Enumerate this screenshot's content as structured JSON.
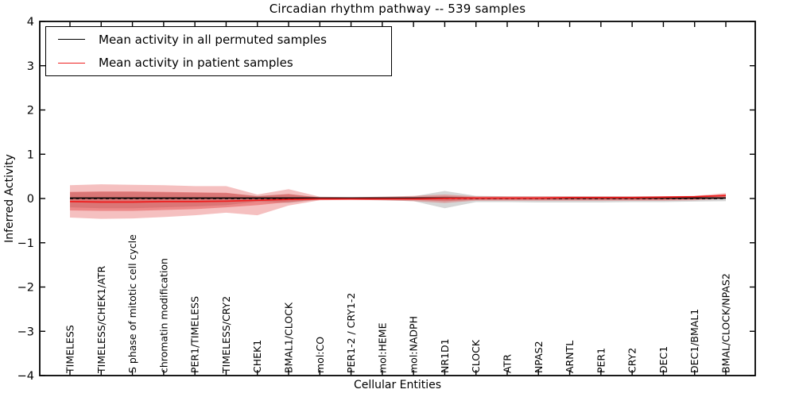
{
  "chart_data": {
    "type": "area",
    "title": "Circadian rhythm pathway -- 539 samples",
    "xlabel": "Cellular Entities",
    "ylabel": "Inferred Activity",
    "ylim": [
      -4,
      4
    ],
    "grid": false,
    "legend_position": "upper left",
    "yticks": [
      {
        "label": "4",
        "value": 4
      },
      {
        "label": "3",
        "value": 3
      },
      {
        "label": "2",
        "value": 2
      },
      {
        "label": "1",
        "value": 1
      },
      {
        "label": "0",
        "value": 0
      },
      {
        "label": "−1",
        "value": -1
      },
      {
        "label": "−2",
        "value": -2
      },
      {
        "label": "−3",
        "value": -3
      },
      {
        "label": "−4",
        "value": -4
      }
    ],
    "categories": [
      "TIMELESS",
      "TIMELESS/CHEK1/ATR",
      "S phase of mitotic cell cycle",
      "chromatin modification",
      "PER1/TIMELESS",
      "TIMELESS/CRY2",
      "CHEK1",
      "BMAL1/CLOCK",
      "mol:CO",
      "PER1-2 / CRY1-2",
      "mol:HEME",
      "mol:NADPH",
      "NR1D1",
      "CLOCK",
      "ATR",
      "NPAS2",
      "ARNTL",
      "PER1",
      "CRY2",
      "DEC1",
      "DEC1/BMAL1",
      "BMAL/CLOCK/NPAS2"
    ],
    "legend": [
      {
        "label": "Mean activity in all permuted samples",
        "color": "#000000"
      },
      {
        "label": "Mean activity in patient samples",
        "color": "#ee2020"
      }
    ],
    "bands": [
      {
        "name": "permuted-std-band",
        "color": "#808080",
        "alpha": 0.32,
        "upper": [
          0.14,
          0.15,
          0.15,
          0.14,
          0.13,
          0.12,
          0.06,
          0.1,
          0.03,
          0.03,
          0.04,
          0.05,
          0.17,
          0.06,
          0.05,
          0.05,
          0.05,
          0.05,
          0.05,
          0.05,
          0.05,
          0.08
        ],
        "lower": [
          -0.2,
          -0.22,
          -0.22,
          -0.2,
          -0.18,
          -0.15,
          -0.07,
          -0.1,
          -0.03,
          -0.03,
          -0.04,
          -0.06,
          -0.22,
          -0.08,
          -0.08,
          -0.09,
          -0.09,
          -0.09,
          -0.08,
          -0.08,
          -0.07,
          -0.06
        ]
      },
      {
        "name": "patient-std-outer-band",
        "color": "#de2d2d",
        "alpha": 0.3,
        "upper": [
          0.3,
          0.32,
          0.31,
          0.3,
          0.28,
          0.28,
          0.09,
          0.21,
          0.04,
          0.03,
          0.04,
          0.06,
          0.09,
          0.05,
          0.05,
          0.05,
          0.05,
          0.05,
          0.05,
          0.05,
          0.06,
          0.12
        ],
        "lower": [
          -0.43,
          -0.46,
          -0.45,
          -0.42,
          -0.38,
          -0.32,
          -0.38,
          -0.16,
          -0.04,
          -0.03,
          -0.04,
          -0.06,
          -0.1,
          -0.05,
          -0.05,
          -0.05,
          -0.05,
          -0.05,
          -0.05,
          -0.05,
          -0.04,
          -0.01
        ]
      },
      {
        "name": "patient-std-inner-band",
        "color": "#de2d2d",
        "alpha": 0.38,
        "upper": [
          0.15,
          0.16,
          0.16,
          0.15,
          0.14,
          0.13,
          0.05,
          0.1,
          0.02,
          0.02,
          0.02,
          0.03,
          0.05,
          0.03,
          0.03,
          0.03,
          0.03,
          0.03,
          0.03,
          0.03,
          0.03,
          0.09
        ],
        "lower": [
          -0.27,
          -0.28,
          -0.28,
          -0.26,
          -0.24,
          -0.2,
          -0.15,
          -0.08,
          -0.02,
          -0.02,
          -0.02,
          -0.03,
          -0.06,
          -0.03,
          -0.03,
          -0.03,
          -0.03,
          -0.03,
          -0.03,
          -0.03,
          -0.02,
          0.02
        ]
      }
    ],
    "lines": [
      {
        "name": "zero-dashed-line",
        "color": "#000000",
        "width": 1.4,
        "dash": "4,3.5",
        "value": 0
      },
      {
        "name": "permuted-mean-line",
        "color": "#000000",
        "width": 1.6,
        "values": [
          0.01,
          0.01,
          0.01,
          0.01,
          0.01,
          0.01,
          0.01,
          0.01,
          0.01,
          0.01,
          0.01,
          0.01,
          0.01,
          0.01,
          0.01,
          0.01,
          0.01,
          0.01,
          0.01,
          0.01,
          0.01,
          0.01
        ]
      },
      {
        "name": "patient-mean-line",
        "color": "#ee2020",
        "width": 1.8,
        "values": [
          -0.07,
          -0.08,
          -0.08,
          -0.07,
          -0.07,
          -0.06,
          -0.04,
          -0.02,
          -0.01,
          -0.01,
          -0.01,
          -0.01,
          0.0,
          0.01,
          0.01,
          0.01,
          0.02,
          0.02,
          0.02,
          0.03,
          0.04,
          0.07
        ]
      }
    ]
  }
}
